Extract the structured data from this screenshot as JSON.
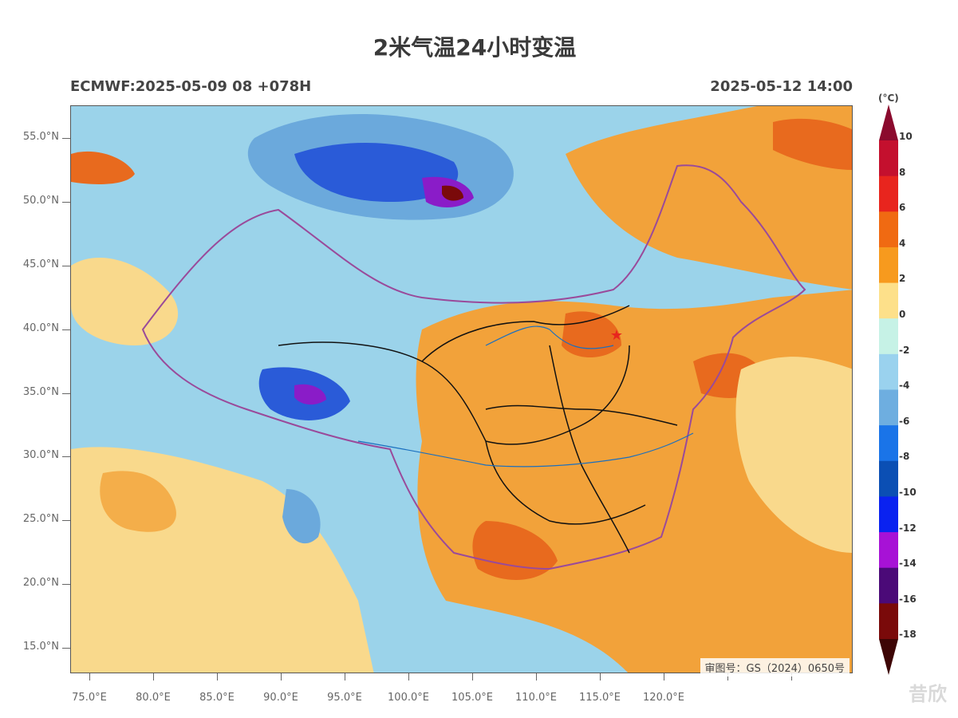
{
  "title": "2米气温24小时变温",
  "model_run": "ECMWF:2025-05-09 08 +078H",
  "valid_time": "2025-05-12 14:00",
  "unit": "(°C)",
  "approval_number": "审图号：GS（2024）0650号",
  "watermark": "昔欣",
  "lat_labels": [
    "55.0°N",
    "50.0°N",
    "45.0°N",
    "40.0°N",
    "35.0°N",
    "30.0°N",
    "25.0°N",
    "20.0°N",
    "15.0°N"
  ],
  "lon_labels": [
    "75.0°E",
    "80.0°E",
    "85.0°E",
    "90.0°E",
    "95.0°E",
    "100.0°E",
    "105.0°E",
    "110.0°E",
    "115.0°E",
    "120.0°E"
  ],
  "colorbar": {
    "labels": [
      "10",
      "8",
      "6",
      "4",
      "2",
      "0",
      "-2",
      "-4",
      "-6",
      "-8",
      "-10",
      "-12",
      "-14",
      "-16",
      "-18"
    ],
    "colors": [
      "#8b0a2e",
      "#c4102e",
      "#e8251e",
      "#f06a12",
      "#f79a1e",
      "#fde08a",
      "#c6f2e6",
      "#9ad2ee",
      "#6eaee0",
      "#1a74e8",
      "#0b4fb4",
      "#0a22f0",
      "#a712d6",
      "#4b0a78",
      "#7a0a0a",
      "#3d0505"
    ]
  },
  "map_colors": {
    "land_warm_light": "#f9d98c",
    "land_warm": "#f2a23a",
    "land_hot": "#e86a1e",
    "cold_light": "#9bd3ea",
    "cold": "#6ba9dc",
    "cold_deep": "#2a5bd8",
    "cold_extreme": "#8a1cc8",
    "border": "#111111",
    "province_border": "#9a4a9a"
  },
  "marker": {
    "name": "beijing-star",
    "color": "#e8251e"
  }
}
